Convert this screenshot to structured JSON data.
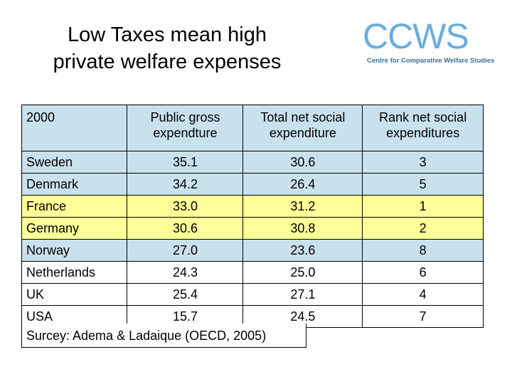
{
  "title_line1": "Low Taxes mean high",
  "title_line2": "private welfare expenses",
  "logo": {
    "mark": "CCWS",
    "subtitle": "Centre for Comparative Welfare Studies",
    "color": "#6aaedc"
  },
  "table": {
    "headers": [
      "2000",
      "Public gross expendture",
      "Total net social expenditure",
      "Rank net social expenditures"
    ],
    "rows": [
      {
        "country": "Sweden",
        "public_gross": "35.1",
        "total_net": "30.6",
        "rank": "3"
      },
      {
        "country": "Denmark",
        "public_gross": "34.2",
        "total_net": "26.4",
        "rank": "5"
      },
      {
        "country": "France",
        "public_gross": "33.0",
        "total_net": "31.2",
        "rank": "1"
      },
      {
        "country": "Germany",
        "public_gross": "30.6",
        "total_net": "30.8",
        "rank": "2"
      },
      {
        "country": "Norway",
        "public_gross": "27.0",
        "total_net": "23.6",
        "rank": "8"
      },
      {
        "country": "Netherlands",
        "public_gross": "24.3",
        "total_net": "25.0",
        "rank": "6"
      },
      {
        "country": "UK",
        "public_gross": "25.4",
        "total_net": "27.1",
        "rank": "4"
      },
      {
        "country": "USA",
        "public_gross": "15.7",
        "total_net": "24.5",
        "rank": "7"
      }
    ]
  },
  "source": "Surcey: Adema & Ladaique (OECD, 2005)",
  "colors": {
    "blue_rows": "#c9e1ec",
    "yellow_rows": "#ffff99"
  }
}
